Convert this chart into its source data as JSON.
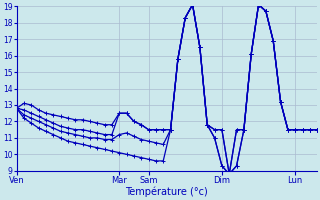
{
  "xlabel": "Température (°c)",
  "bg_color": "#cce8ec",
  "grid_color": "#aabbd0",
  "line_color": "#0000bb",
  "ylim": [
    9,
    19
  ],
  "yticks": [
    9,
    10,
    11,
    12,
    13,
    14,
    15,
    16,
    17,
    18,
    19
  ],
  "day_labels": [
    "Ven",
    "Mar",
    "Sam",
    "Dim",
    "Lun"
  ],
  "day_positions": [
    0,
    14,
    18,
    28,
    38
  ],
  "num_points": 42,
  "series": [
    [
      12.8,
      13.1,
      13.0,
      12.7,
      12.5,
      12.4,
      12.3,
      12.2,
      12.1,
      12.1,
      12.0,
      11.9,
      11.8,
      11.8,
      12.5,
      12.5,
      12.0,
      11.8,
      11.5,
      11.5,
      11.5,
      11.5,
      15.8,
      18.3,
      19.1,
      16.5,
      11.8,
      11.5,
      11.5,
      8.8,
      11.5,
      11.5,
      16.1,
      19.1,
      18.7,
      16.9,
      13.2,
      11.5,
      11.5,
      11.5,
      11.5,
      11.5
    ],
    [
      12.8,
      12.7,
      12.5,
      12.3,
      12.1,
      11.9,
      11.7,
      11.6,
      11.5,
      11.5,
      11.4,
      11.3,
      11.2,
      11.2,
      12.5,
      12.5,
      12.0,
      11.8,
      11.5,
      11.5,
      11.5,
      11.5,
      15.8,
      18.3,
      19.1,
      16.5,
      11.8,
      11.5,
      11.5,
      8.8,
      11.5,
      11.5,
      16.1,
      19.1,
      18.7,
      16.9,
      13.2,
      11.5,
      11.5,
      11.5,
      11.5,
      11.5
    ],
    [
      12.8,
      12.4,
      12.2,
      12.0,
      11.8,
      11.6,
      11.4,
      11.3,
      11.2,
      11.1,
      11.0,
      11.0,
      10.9,
      10.9,
      11.2,
      11.3,
      11.1,
      10.9,
      10.8,
      10.7,
      10.6,
      11.5,
      15.8,
      18.3,
      19.1,
      16.5,
      11.8,
      11.0,
      9.3,
      8.8,
      9.3,
      11.5,
      16.1,
      19.1,
      18.7,
      16.9,
      13.2,
      11.5,
      11.5,
      11.5,
      11.5,
      11.5
    ],
    [
      12.8,
      12.2,
      11.9,
      11.6,
      11.4,
      11.2,
      11.0,
      10.8,
      10.7,
      10.6,
      10.5,
      10.4,
      10.3,
      10.2,
      10.1,
      10.0,
      9.9,
      9.8,
      9.7,
      9.6,
      9.6,
      11.5,
      15.8,
      18.3,
      19.1,
      16.5,
      11.8,
      11.0,
      9.3,
      8.8,
      9.3,
      11.5,
      16.1,
      19.1,
      18.7,
      16.9,
      13.2,
      11.5,
      11.5,
      11.5,
      11.5,
      11.5
    ]
  ]
}
